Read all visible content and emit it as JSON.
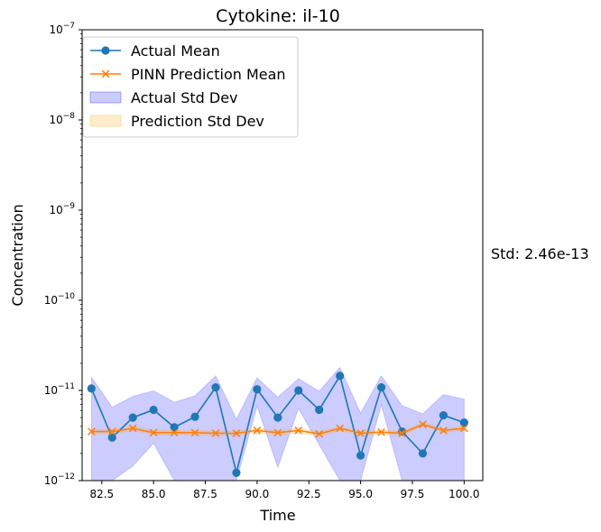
{
  "chart_data": {
    "type": "line",
    "title": "Cytokine: il-10",
    "xlabel": "Time",
    "ylabel": "Concentration",
    "xlim": [
      81.55,
      100.9
    ],
    "ylim": [
      1e-12,
      1e-07
    ],
    "yscale": "log",
    "grid": false,
    "legend_position": "top-left",
    "x_ticks": [
      82.5,
      85.0,
      87.5,
      90.0,
      92.5,
      95.0,
      97.5,
      100.0
    ],
    "x_tick_labels": [
      "82.5",
      "85.0",
      "87.5",
      "90.0",
      "92.5",
      "95.0",
      "97.5",
      "100.0"
    ],
    "y_ticks": [
      1e-12,
      1e-11,
      1e-10,
      1e-09,
      1e-08,
      1e-07
    ],
    "y_tick_bases": [
      "10",
      "10",
      "10",
      "10",
      "10",
      "10"
    ],
    "y_tick_exps": [
      "−12",
      "−11",
      "−10",
      "−9",
      "−8",
      "−7"
    ],
    "x": [
      82,
      83,
      84,
      85,
      86,
      87,
      88,
      89,
      90,
      91,
      92,
      93,
      94,
      95,
      96,
      97,
      98,
      99,
      100
    ],
    "series": [
      {
        "name": "Actual Mean",
        "color": "#1f77b4",
        "marker": "circle",
        "values": [
          1.05e-11,
          3e-12,
          5e-12,
          6.1e-12,
          3.9e-12,
          5.1e-12,
          1.08e-11,
          1.22e-12,
          1.03e-11,
          5e-12,
          1e-11,
          6.1e-12,
          1.45e-11,
          1.9e-12,
          1.08e-11,
          3.5e-12,
          2e-12,
          5.3e-12,
          4.4e-12
        ]
      },
      {
        "name": "PINN Prediction Mean",
        "color": "#ff7f0e",
        "marker": "x",
        "values": [
          3.5e-12,
          3.5e-12,
          3.8e-12,
          3.4e-12,
          3.4e-12,
          3.4e-12,
          3.35e-12,
          3.35e-12,
          3.6e-12,
          3.4e-12,
          3.6e-12,
          3.3e-12,
          3.8e-12,
          3.35e-12,
          3.45e-12,
          3.35e-12,
          4.2e-12,
          3.6e-12,
          3.8e-12
        ]
      }
    ],
    "bands": [
      {
        "name": "Actual Std Dev",
        "color": "#0000ff",
        "opacity": 0.2,
        "upper": [
          1.4e-11,
          6.5e-12,
          8.6e-12,
          9.9e-12,
          7.4e-12,
          8.7e-12,
          1.45e-11,
          4.8e-12,
          1.38e-11,
          8.4e-12,
          1.35e-11,
          9.8e-12,
          1.8e-11,
          5.6e-12,
          1.45e-11,
          6.8e-12,
          5.5e-12,
          9e-12,
          8e-12
        ],
        "lower": [
          1e-12,
          1e-12,
          1.45e-12,
          2.6e-12,
          1e-12,
          1e-12,
          1e-12,
          1e-12,
          6.7e-12,
          1.4e-12,
          6.3e-12,
          2.5e-12,
          1e-12,
          1e-12,
          6.9e-12,
          1e-12,
          1e-12,
          1e-12,
          1e-12
        ]
      },
      {
        "name": "Prediction Std Dev",
        "color": "#ffa500",
        "opacity": 0.2,
        "upper": [
          3.7e-12,
          3.7e-12,
          4e-12,
          3.6e-12,
          3.6e-12,
          3.6e-12,
          3.55e-12,
          3.55e-12,
          3.8e-12,
          3.6e-12,
          3.8e-12,
          3.5e-12,
          4e-12,
          3.55e-12,
          3.65e-12,
          3.55e-12,
          4.4e-12,
          3.8e-12,
          4e-12
        ],
        "lower": [
          3.3e-12,
          3.3e-12,
          3.6e-12,
          3.2e-12,
          3.2e-12,
          3.2e-12,
          3.15e-12,
          3.15e-12,
          3.4e-12,
          3.2e-12,
          3.4e-12,
          3.1e-12,
          3.6e-12,
          3.15e-12,
          3.25e-12,
          3.15e-12,
          4e-12,
          3.4e-12,
          3.6e-12
        ]
      }
    ]
  },
  "side_note": "Std: 2.46e-13"
}
